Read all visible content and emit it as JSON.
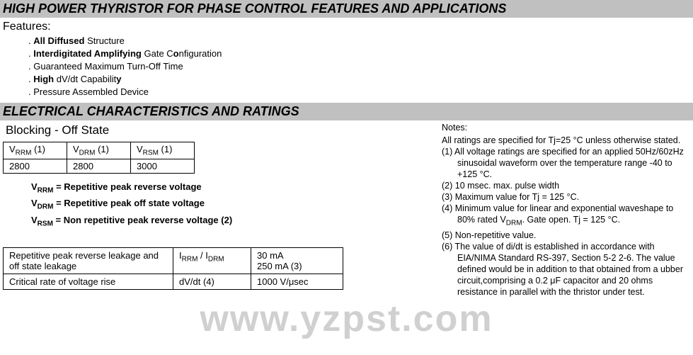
{
  "title_banner": "HIGH POWER THYRISTOR FOR PHASE CONTROL FEATURES AND APPLICATIONS",
  "features_label": "Features:",
  "features": [
    {
      "pre": "",
      "bold": "All Diffused",
      "post": " Structure"
    },
    {
      "pre": "",
      "bold": "Interdigitated Amplifying",
      "post": " Gate C",
      "bold2": "o",
      "post2": "nfiguration"
    },
    {
      "pre": "Guaranteed Maximum Turn-Off Time",
      "bold": "",
      "post": ""
    },
    {
      "pre": "",
      "bold": "High",
      "post": " dV/dt  Capabilit",
      "bold2": "y",
      "post2": ""
    },
    {
      "pre": "Pressure Assembled Device",
      "bold": "",
      "post": ""
    }
  ],
  "elec_banner": "ELECTRICAL CHARACTERISTICS AND RATINGS",
  "blocking_label": "Blocking - Off  State",
  "blocking_table": {
    "headers": [
      {
        "sym": "V",
        "sub": "RRM",
        "suffix": " (1)"
      },
      {
        "sym": "V",
        "sub": "DRM",
        "suffix": " (1)"
      },
      {
        "sym": "V",
        "sub": "RSM",
        "suffix": " (1)"
      }
    ],
    "values": [
      "2800",
      "2800",
      "3000"
    ]
  },
  "defs": [
    {
      "sym": "V",
      "sub": "RRM",
      "eq": "  = Repetitive peak reverse voltage"
    },
    {
      "sym": "V",
      "sub": "DRM",
      "eq": "  = Repetitive peak off state voltage"
    },
    {
      "sym": "V",
      "sub": "RSM",
      "eq": "  = Non repetitive peak reverse voltage (2)"
    }
  ],
  "params_table": [
    {
      "label": "Repetitive peak reverse leakage and off state leakage",
      "sym": "I",
      "sub1": "RRM",
      "mid": " / I",
      "sub2": "DRM",
      "val_lines": [
        "30 mA",
        "250 mA (3)"
      ]
    },
    {
      "label": "Critical rate of voltage rise",
      "sym": "dV/dt (4)",
      "sub1": "",
      "mid": "",
      "sub2": "",
      "val_lines": [
        "1000 V/μsec"
      ]
    }
  ],
  "notes": {
    "head": "Notes:",
    "intro": "All ratings are specified for Tj=25 °C unless otherwise stated.",
    "items": [
      "(1) All voltage ratings are specified for an applied 50Hz/60zHz  sinusoidal waveform  over the temperature range    -40 to +125  °C.",
      "(2) 10 msec. max. pulse width",
      "(3) Maximum  value for Tj = 125 °C.",
      "(4) Minimum value for linear and exponential waveshape to 80% rated V_DRM. Gate open. Tj = 125 °C.",
      "(5) Non-repetitive  value.",
      "(6) The value of di/dt is established in accordance with EIA/NIMA  Standard RS-397, Section 5-2 2-6. The value defined would be in addition to that obtained from a ubber circuit,comprising a 0.2 μF capacitor and 20 ohms resistance in parallel with the thristor under test."
    ]
  },
  "watermark": "www.yzpst.com"
}
